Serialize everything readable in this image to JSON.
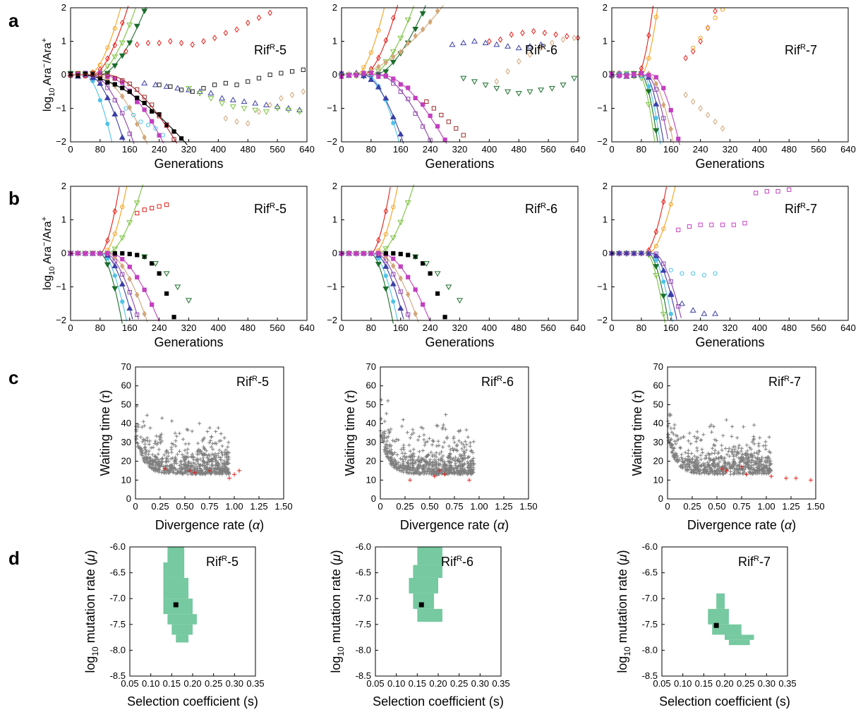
{
  "figure": {
    "panel_letters": [
      "a",
      "b",
      "c",
      "d"
    ],
    "strains": [
      "Rif",
      "R",
      "-5",
      "-6",
      "-7"
    ],
    "y_label_ab": [
      "log",
      "10",
      " Ara",
      "−",
      "/Ara",
      "+"
    ],
    "x_label_ab": "Generations",
    "x_label_c": [
      "Divergence rate (",
      "α",
      ")"
    ],
    "y_label_c": [
      "Waiting time (",
      "τ",
      ")"
    ],
    "x_label_d": "Selection coefficient (s)",
    "y_label_d": [
      "log",
      "10",
      " mutation rate (",
      "μ",
      ")"
    ]
  },
  "chart_data": [
    {
      "panel": "a",
      "type": "scatter",
      "strain": "-5",
      "xlim": [
        0,
        640
      ],
      "ylim": [
        -2,
        2
      ],
      "xticks": [
        "0",
        "80",
        "160",
        "240",
        "320",
        "400",
        "480",
        "560",
        "640"
      ],
      "yticks": [
        "2",
        "1",
        "0",
        "−1",
        "−2"
      ],
      "series": [
        {
          "color": "#e3201b",
          "marker": "diamond-open",
          "x": [
            150,
            180,
            210,
            240,
            270,
            300,
            330,
            360,
            390,
            420,
            450,
            480,
            510,
            540
          ],
          "y": [
            0.7,
            0.9,
            0.95,
            0.95,
            1.0,
            0.95,
            0.9,
            1.0,
            1.1,
            1.25,
            1.35,
            1.55,
            1.7,
            1.85
          ]
        },
        {
          "color": "#3b3fa6",
          "marker": "triangle-open",
          "x": [
            200,
            230,
            260,
            290,
            320,
            350,
            380,
            410,
            440,
            470,
            500,
            530,
            560,
            590,
            620
          ],
          "y": [
            -0.25,
            -0.3,
            -0.35,
            -0.4,
            -0.45,
            -0.5,
            -0.55,
            -0.7,
            -0.75,
            -0.8,
            -0.85,
            -0.9,
            -0.95,
            -1.0,
            -1.05
          ]
        },
        {
          "color": "#222222",
          "marker": "square-open",
          "x": [
            240,
            270,
            300,
            330,
            360,
            390,
            420,
            450,
            480,
            510,
            540,
            570,
            600,
            630
          ],
          "y": [
            -0.3,
            -0.35,
            -0.45,
            -0.5,
            -0.4,
            -0.3,
            -0.25,
            -0.3,
            -0.2,
            -0.1,
            0.0,
            0.05,
            0.1,
            0.15
          ]
        },
        {
          "color": "#d2a679",
          "marker": "diamond-open",
          "x": [
            420,
            450,
            480,
            510,
            540,
            570,
            600,
            630
          ],
          "y": [
            -1.3,
            -1.4,
            -1.45,
            -1.1,
            -0.9,
            -0.7,
            -0.6,
            -0.5
          ]
        },
        {
          "color": "#7dc242",
          "marker": "triangle-down-open",
          "x": [
            320,
            350,
            380,
            410,
            440,
            470,
            500,
            530,
            560,
            590,
            620
          ],
          "y": [
            -0.4,
            -0.55,
            -0.7,
            -0.85,
            -0.95,
            -1.0,
            -1.05,
            -1.1,
            -1.0,
            -1.05,
            -1.1
          ]
        },
        {
          "color": "#4fc3e8",
          "marker": "circle-open",
          "x": [
            150,
            170,
            190,
            210,
            230,
            250
          ],
          "y": [
            -1.0,
            -1.2,
            -1.4,
            -1.5,
            -1.6,
            -1.8
          ]
        }
      ]
    },
    {
      "panel": "a",
      "type": "scatter",
      "strain": "-6",
      "xlim": [
        0,
        640
      ],
      "ylim": [
        -2,
        2
      ],
      "xticks": [
        "0",
        "80",
        "160",
        "240",
        "320",
        "400",
        "480",
        "560",
        "640"
      ],
      "yticks": [
        "2",
        "1",
        "0",
        "−1",
        "−2"
      ],
      "series": [
        {
          "color": "#e3201b",
          "marker": "diamond-open",
          "x": [
            400,
            430,
            460,
            490,
            520,
            550,
            580,
            610,
            640
          ],
          "y": [
            1.0,
            1.05,
            1.2,
            1.25,
            1.3,
            1.25,
            1.2,
            1.15,
            1.1
          ]
        },
        {
          "color": "#3b3fa6",
          "marker": "triangle-open",
          "x": [
            300,
            330,
            360,
            390,
            420,
            450,
            480,
            510,
            540
          ],
          "y": [
            0.9,
            0.95,
            1.0,
            0.95,
            0.9,
            0.85,
            0.8,
            0.85,
            0.9
          ]
        },
        {
          "color": "#1b6e2b",
          "marker": "triangle-down-open",
          "x": [
            330,
            360,
            390,
            420,
            450,
            480,
            510,
            540,
            570,
            600,
            630
          ],
          "y": [
            -0.1,
            -0.2,
            -0.3,
            -0.4,
            -0.5,
            -0.55,
            -0.5,
            -0.45,
            -0.4,
            -0.3,
            -0.1
          ]
        },
        {
          "color": "#d2a679",
          "marker": "diamond-open",
          "x": [
            420,
            450,
            480,
            510,
            540,
            570,
            600,
            630
          ],
          "y": [
            -0.2,
            0.1,
            0.4,
            0.6,
            0.8,
            0.95,
            1.05,
            1.1
          ]
        },
        {
          "color": "#a0282b",
          "marker": "square-open",
          "x": [
            230,
            250,
            270,
            290,
            310,
            330
          ],
          "y": [
            -0.8,
            -1.0,
            -1.2,
            -1.4,
            -1.6,
            -1.8
          ]
        }
      ]
    },
    {
      "panel": "a",
      "type": "scatter",
      "strain": "-7",
      "xlim": [
        0,
        640
      ],
      "ylim": [
        -2,
        2
      ],
      "xticks": [
        "0",
        "80",
        "160",
        "240",
        "320",
        "400",
        "480",
        "560",
        "640"
      ],
      "yticks": [
        "2",
        "1",
        "0",
        "−1",
        "−2"
      ],
      "series": [
        {
          "color": "#e3201b",
          "marker": "diamond-open",
          "x": [
            200,
            220,
            240,
            260,
            280
          ],
          "y": [
            0.5,
            0.7,
            1.0,
            1.4,
            1.9
          ]
        },
        {
          "color": "#d2a679",
          "marker": "diamond-open",
          "x": [
            200,
            220,
            240,
            260,
            280,
            300
          ],
          "y": [
            -0.6,
            -0.8,
            -1.0,
            -1.2,
            -1.4,
            -1.6
          ]
        },
        {
          "color": "#f4a11d",
          "marker": "circle-open",
          "x": [
            220,
            240,
            260,
            280,
            300
          ],
          "y": [
            0.8,
            1.1,
            1.4,
            1.7,
            1.95
          ]
        }
      ]
    },
    {
      "panel": "b",
      "type": "scatter",
      "strain": "-5",
      "xlim": [
        0,
        640
      ],
      "ylim": [
        -2,
        2
      ],
      "xticks": [
        "0",
        "80",
        "160",
        "240",
        "320",
        "400",
        "480",
        "560",
        "640"
      ],
      "yticks": [
        "2",
        "1",
        "0",
        "−1",
        "−2"
      ],
      "series": [
        {
          "color": "#e3201b",
          "marker": "square-open",
          "x": [
            180,
            200,
            220,
            240,
            260
          ],
          "y": [
            1.2,
            1.3,
            1.35,
            1.4,
            1.45
          ]
        },
        {
          "color": "#000000",
          "marker": "square",
          "x": [
            120,
            140,
            160,
            180,
            200,
            220,
            240,
            260,
            280
          ],
          "y": [
            0,
            0,
            -0.02,
            -0.05,
            -0.1,
            -0.3,
            -0.6,
            -1.2,
            -1.9
          ]
        },
        {
          "color": "#1b6e2b",
          "marker": "triangle-down-open",
          "x": [
            200,
            230,
            260,
            290,
            320
          ],
          "y": [
            -0.1,
            -0.3,
            -0.6,
            -1.0,
            -1.4
          ]
        }
      ]
    },
    {
      "panel": "b",
      "type": "scatter",
      "strain": "-6",
      "xlim": [
        0,
        640
      ],
      "ylim": [
        -2,
        2
      ],
      "xticks": [
        "0",
        "80",
        "160",
        "240",
        "320",
        "400",
        "480",
        "560",
        "640"
      ],
      "yticks": [
        "2",
        "1",
        "0",
        "−1",
        "−2"
      ],
      "series": [
        {
          "color": "#000000",
          "marker": "square",
          "x": [
            120,
            140,
            160,
            180,
            200,
            220,
            240,
            260,
            280
          ],
          "y": [
            0,
            0,
            -0.02,
            -0.05,
            -0.1,
            -0.3,
            -0.6,
            -1.2,
            -1.9
          ]
        },
        {
          "color": "#1b6e2b",
          "marker": "triangle-down-open",
          "x": [
            200,
            230,
            260,
            290,
            320
          ],
          "y": [
            -0.1,
            -0.3,
            -0.6,
            -1.0,
            -1.4
          ]
        }
      ]
    },
    {
      "panel": "b",
      "type": "scatter",
      "strain": "-7",
      "xlim": [
        0,
        640
      ],
      "ylim": [
        -2,
        2
      ],
      "xticks": [
        "0",
        "80",
        "160",
        "240",
        "320",
        "400",
        "480",
        "560",
        "640"
      ],
      "yticks": [
        "2",
        "1",
        "0",
        "−1",
        "−2"
      ],
      "series": [
        {
          "color": "#c23fbf",
          "marker": "square-open",
          "x": [
            180,
            210,
            240,
            270,
            300,
            330,
            360,
            390,
            420,
            450,
            480
          ],
          "y": [
            0.7,
            0.8,
            0.85,
            0.85,
            0.85,
            0.85,
            0.9,
            1.8,
            1.85,
            1.85,
            1.9
          ]
        },
        {
          "color": "#3b3fa6",
          "marker": "triangle-open",
          "x": [
            160,
            190,
            220,
            250,
            280
          ],
          "y": [
            -1.2,
            -1.5,
            -1.7,
            -1.8,
            -1.8
          ]
        },
        {
          "color": "#4fc3e8",
          "marker": "circle-open",
          "x": [
            160,
            190,
            220,
            250,
            280
          ],
          "y": [
            -0.5,
            -0.6,
            -0.6,
            -0.65,
            -0.6
          ]
        }
      ]
    },
    {
      "panel": "c",
      "type": "scatter",
      "strain": "-5",
      "xlim": [
        0,
        1.5
      ],
      "ylim": [
        0,
        70
      ],
      "xticks": [
        "0",
        "0.25",
        "0.50",
        "0.75",
        "1.00",
        "1.25",
        "1.50"
      ],
      "yticks": [
        "0",
        "10",
        "20",
        "30",
        "40",
        "50",
        "60",
        "70"
      ],
      "highlight_points": {
        "x": [
          0.3,
          0.55,
          0.6,
          0.75,
          0.95,
          1.0,
          1.05
        ],
        "y": [
          16,
          15,
          14,
          15,
          11,
          13,
          15
        ]
      }
    },
    {
      "panel": "c",
      "type": "scatter",
      "strain": "-6",
      "xlim": [
        0,
        1.5
      ],
      "ylim": [
        0,
        70
      ],
      "xticks": [
        "0",
        "0.25",
        "0.50",
        "0.75",
        "1.00",
        "1.25",
        "1.50"
      ],
      "yticks": [
        "0",
        "10",
        "20",
        "30",
        "40",
        "50",
        "60",
        "70"
      ],
      "highlight_points": {
        "x": [
          0.3,
          0.55,
          0.6,
          0.65,
          0.9
        ],
        "y": [
          10,
          12,
          15,
          13,
          10
        ]
      }
    },
    {
      "panel": "c",
      "type": "scatter",
      "strain": "-7",
      "xlim": [
        0,
        1.5
      ],
      "ylim": [
        0,
        70
      ],
      "xticks": [
        "0",
        "0.25",
        "0.50",
        "0.75",
        "1.00",
        "1.25",
        "1.50"
      ],
      "yticks": [
        "0",
        "10",
        "20",
        "30",
        "40",
        "50",
        "60",
        "70"
      ],
      "highlight_points": {
        "x": [
          0.55,
          0.6,
          0.75,
          0.8,
          1.05,
          1.2,
          1.3,
          1.45
        ],
        "y": [
          16,
          15,
          17,
          13,
          12,
          11,
          11,
          10
        ]
      }
    },
    {
      "panel": "d",
      "type": "heatmap",
      "strain": "-5",
      "xlim": [
        0.05,
        0.35
      ],
      "ylim": [
        -8.5,
        -6.0
      ],
      "xticks": [
        "0.05",
        "0.10",
        "0.15",
        "0.20",
        "0.25",
        "0.30",
        "0.35"
      ],
      "yticks": [
        "-6.0",
        "-6.5",
        "-7.0",
        "-7.5",
        "-8.0",
        "-8.5"
      ],
      "estimate": {
        "s": 0.16,
        "log10_mu": -7.12
      },
      "region_color": "#76c9a0"
    },
    {
      "panel": "d",
      "type": "heatmap",
      "strain": "-6",
      "xlim": [
        0.05,
        0.35
      ],
      "ylim": [
        -8.5,
        -6.0
      ],
      "xticks": [
        "0.05",
        "0.10",
        "0.15",
        "0.20",
        "0.25",
        "0.30",
        "0.35"
      ],
      "yticks": [
        "-6.0",
        "-6.5",
        "-7.0",
        "-7.5",
        "-8.0",
        "-8.5"
      ],
      "estimate": {
        "s": 0.16,
        "log10_mu": -7.12
      },
      "region_color": "#76c9a0"
    },
    {
      "panel": "d",
      "type": "heatmap",
      "strain": "-7",
      "xlim": [
        0.05,
        0.35
      ],
      "ylim": [
        -8.5,
        -6.0
      ],
      "xticks": [
        "0.05",
        "0.10",
        "0.15",
        "0.20",
        "0.25",
        "0.30",
        "0.35"
      ],
      "yticks": [
        "-6.0",
        "-6.5",
        "-7.0",
        "-7.5",
        "-8.0",
        "-8.5"
      ],
      "estimate": {
        "s": 0.18,
        "log10_mu": -7.52
      },
      "region_color": "#76c9a0"
    }
  ]
}
